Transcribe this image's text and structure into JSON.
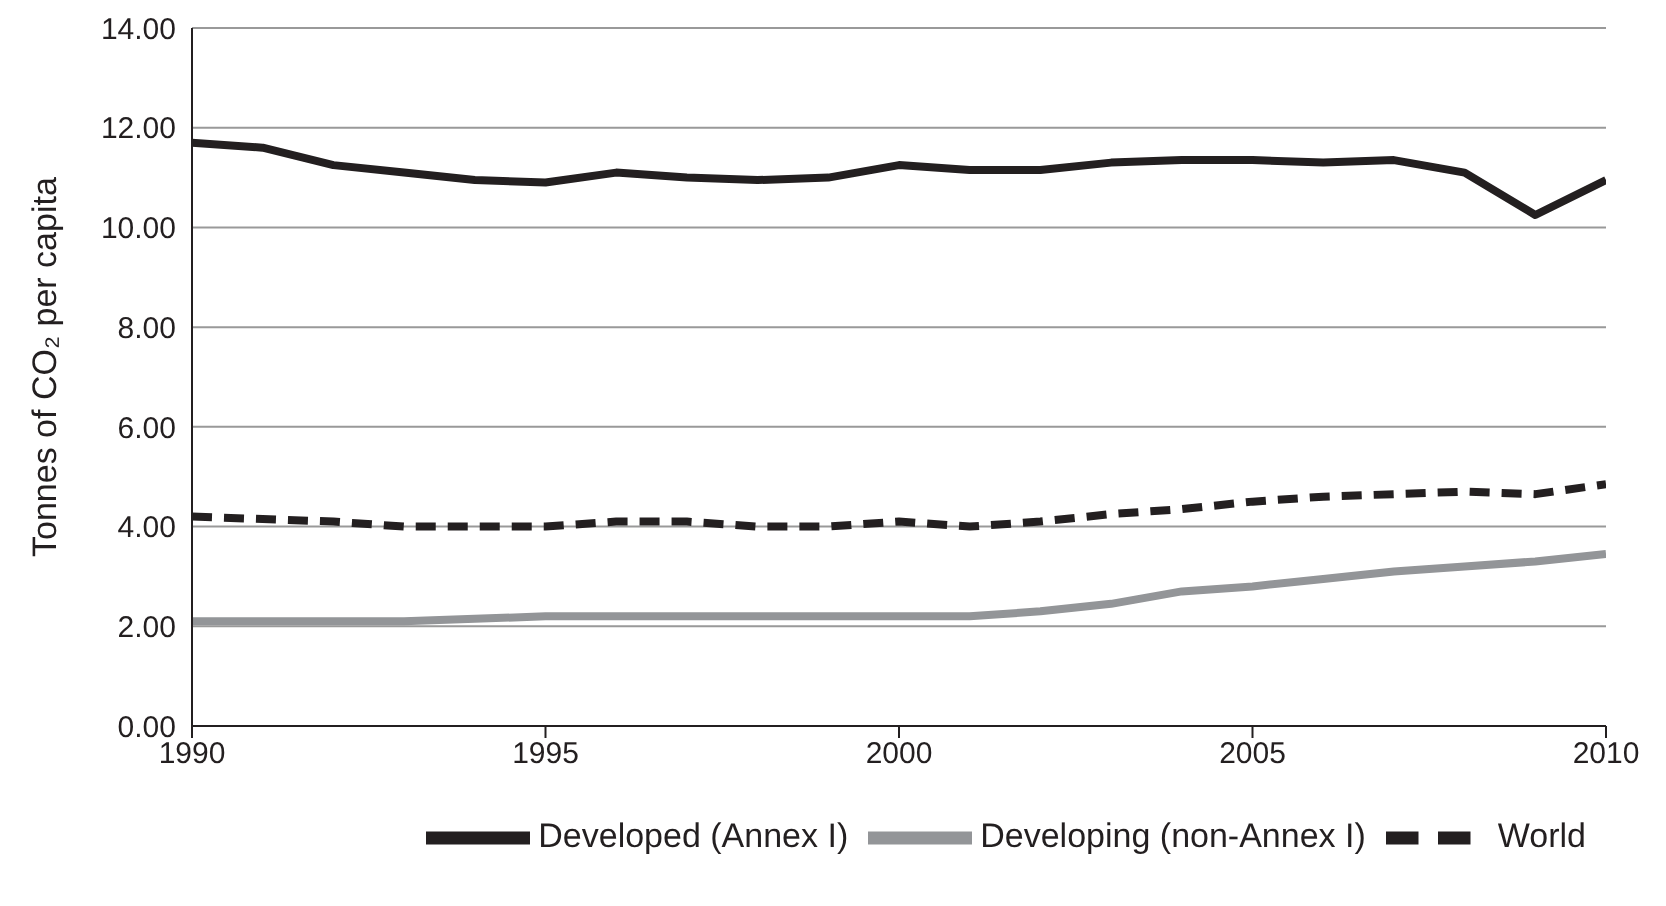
{
  "chart_data": {
    "type": "line",
    "ylabel": "Tonnes of CO₂ per capita",
    "x": [
      1990,
      1991,
      1992,
      1993,
      1994,
      1995,
      1996,
      1997,
      1998,
      1999,
      2000,
      2001,
      2002,
      2003,
      2004,
      2005,
      2006,
      2007,
      2008,
      2009,
      2010
    ],
    "series": [
      {
        "name": "Developed (Annex I)",
        "color": "#231f20",
        "line_style": "solid",
        "values": [
          11.7,
          11.6,
          11.25,
          11.1,
          10.95,
          10.9,
          11.1,
          11.0,
          10.95,
          11.0,
          11.25,
          11.15,
          11.15,
          11.3,
          11.35,
          11.35,
          11.3,
          11.35,
          11.1,
          10.25,
          10.95
        ]
      },
      {
        "name": "Developing (non-Annex I)",
        "color": "#939598",
        "line_style": "solid",
        "values": [
          2.1,
          2.1,
          2.1,
          2.1,
          2.15,
          2.2,
          2.2,
          2.2,
          2.2,
          2.2,
          2.2,
          2.2,
          2.3,
          2.45,
          2.7,
          2.8,
          2.95,
          3.1,
          3.2,
          3.3,
          3.45
        ]
      },
      {
        "name": "World",
        "color": "#231f20",
        "line_style": "dashed",
        "values": [
          4.2,
          4.15,
          4.1,
          4.0,
          4.0,
          4.0,
          4.1,
          4.1,
          4.0,
          4.0,
          4.1,
          4.0,
          4.1,
          4.25,
          4.35,
          4.5,
          4.6,
          4.65,
          4.7,
          4.65,
          4.85
        ]
      }
    ],
    "xlim": [
      1990,
      2010
    ],
    "xticks": [
      1990,
      1995,
      2000,
      2005,
      2010
    ],
    "ylim": [
      0,
      14
    ],
    "yticks": [
      {
        "value": 0,
        "label": "0.00"
      },
      {
        "value": 2,
        "label": "2.00"
      },
      {
        "value": 4,
        "label": "4.00"
      },
      {
        "value": 6,
        "label": "6.00"
      },
      {
        "value": 8,
        "label": "8.00"
      },
      {
        "value": 10,
        "label": "10.00"
      },
      {
        "value": 12,
        "label": "12.00"
      },
      {
        "value": 14,
        "label": "14.00"
      }
    ],
    "grid": "y",
    "legend": "bottom",
    "marker": "none"
  }
}
